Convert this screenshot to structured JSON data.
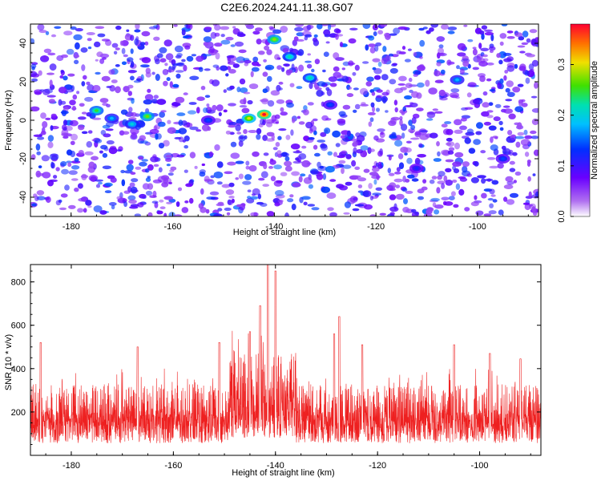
{
  "title": "C2E6.2024.241.11.38.G07",
  "chart_data": [
    {
      "type": "heatmap",
      "xlabel": "Height of straight line (km)",
      "ylabel": "Frequency (Hz)",
      "xlim": [
        -188,
        -88
      ],
      "ylim": [
        -50,
        50
      ],
      "xticks": [
        -180,
        -160,
        -140,
        -120,
        -100
      ],
      "yticks": [
        -40,
        -20,
        0,
        20,
        40
      ],
      "colorbar": {
        "label": "Normalized spectral amplitude",
        "range": [
          0.0,
          0.38
        ],
        "ticks": [
          "0.0",
          "0.1",
          "0.2",
          "0.3"
        ],
        "tick_values": [
          0.0,
          0.1,
          0.2,
          0.3
        ]
      },
      "features": [
        {
          "x": -175,
          "y": 5,
          "amp": 0.25
        },
        {
          "x": -172,
          "y": 1,
          "amp": 0.18
        },
        {
          "x": -168,
          "y": -2,
          "amp": 0.2
        },
        {
          "x": -165,
          "y": 2,
          "amp": 0.27
        },
        {
          "x": -145,
          "y": 1,
          "amp": 0.3
        },
        {
          "x": -142,
          "y": 3,
          "amp": 0.38
        },
        {
          "x": -140,
          "y": 42,
          "amp": 0.28
        },
        {
          "x": -137,
          "y": 33,
          "amp": 0.22
        },
        {
          "x": -133,
          "y": 22,
          "amp": 0.22
        },
        {
          "x": -129,
          "y": 8,
          "amp": 0.14
        },
        {
          "x": -153,
          "y": 0,
          "amp": 0.14
        },
        {
          "x": -104,
          "y": 21,
          "amp": 0.18
        },
        {
          "x": -112,
          "y": -25,
          "amp": 0.12
        },
        {
          "x": -95,
          "y": -20,
          "amp": 0.14
        }
      ]
    },
    {
      "type": "line",
      "xlabel": "Height of straight line (km)",
      "ylabel": "SNR (10 * v/v)",
      "xlim": [
        -188,
        -88
      ],
      "ylim": [
        0,
        880
      ],
      "xticks": [
        -180,
        -160,
        -140,
        -120,
        -100
      ],
      "yticks": [
        200,
        400,
        600,
        800
      ],
      "series": [
        {
          "color": "#ee2020",
          "baseline": 160,
          "peaks": [
            {
              "x": -141.5,
              "y": 880
            },
            {
              "x": -140.0,
              "y": 850
            },
            {
              "x": -143.0,
              "y": 690
            },
            {
              "x": -145.0,
              "y": 570
            },
            {
              "x": -127.5,
              "y": 640
            },
            {
              "x": -128.5,
              "y": 560
            },
            {
              "x": -151.0,
              "y": 520
            },
            {
              "x": -186.0,
              "y": 520
            },
            {
              "x": -123.0,
              "y": 510
            },
            {
              "x": -105.0,
              "y": 510
            },
            {
              "x": -167.0,
              "y": 500
            },
            {
              "x": -98.0,
              "y": 470
            },
            {
              "x": -92.0,
              "y": 445
            }
          ]
        }
      ]
    }
  ]
}
